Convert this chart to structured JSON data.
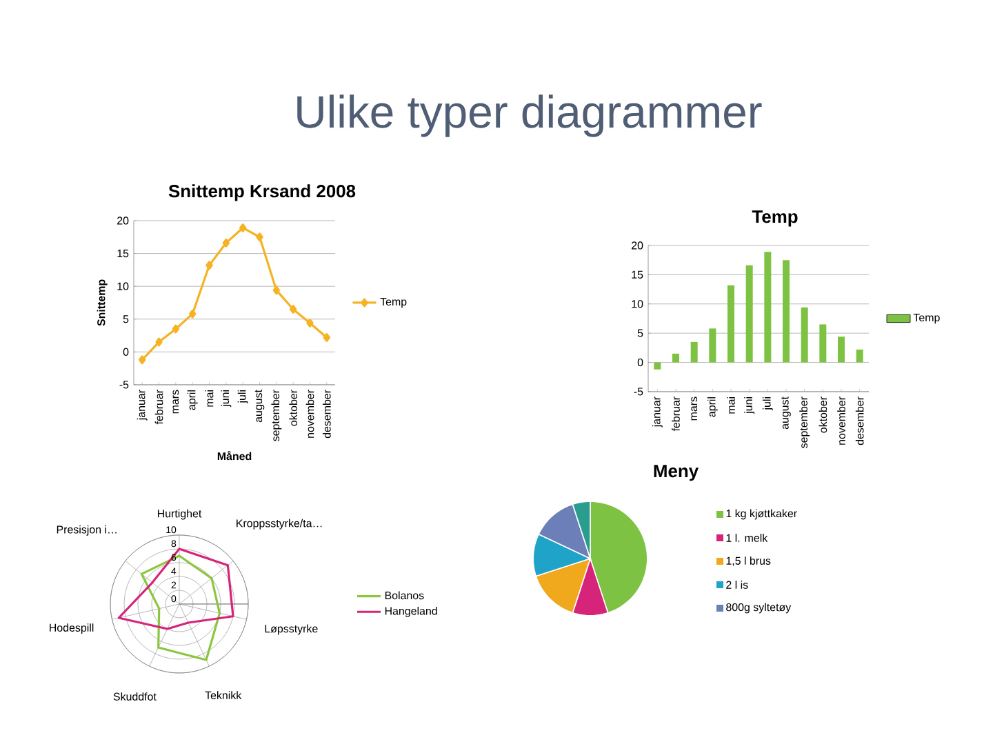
{
  "chart_data": [
    {
      "type": "other",
      "title": "Ulike typer diagrammer"
    },
    {
      "type": "line",
      "title": "Snittemp Krsand 2008",
      "xlabel": "Måned",
      "ylabel": "Snittemp",
      "categories": [
        "januar",
        "februar",
        "mars",
        "april",
        "mai",
        "juni",
        "juli",
        "august",
        "september",
        "oktober",
        "november",
        "desember"
      ],
      "series": [
        {
          "name": "Temp",
          "color": "#f5b323",
          "values": [
            -1.2,
            1.5,
            3.5,
            5.8,
            13.2,
            16.6,
            18.9,
            17.5,
            9.4,
            6.5,
            4.4,
            2.2
          ]
        }
      ],
      "ylim": [
        -5,
        20
      ],
      "yticks": [
        -5,
        0,
        5,
        10,
        15,
        20
      ],
      "grid": "y",
      "legend": "right",
      "marker": "diamond",
      "line_style": "solid"
    },
    {
      "type": "bar",
      "title": "Temp",
      "categories": [
        "januar",
        "februar",
        "mars",
        "april",
        "mai",
        "juni",
        "juli",
        "august",
        "september",
        "oktober",
        "november",
        "desember"
      ],
      "series": [
        {
          "name": "Temp",
          "color": "#7dc242",
          "values": [
            -1.2,
            1.5,
            3.5,
            5.8,
            13.2,
            16.6,
            18.9,
            17.5,
            9.4,
            6.5,
            4.4,
            2.2
          ]
        }
      ],
      "ylim": [
        -5,
        20
      ],
      "yticks": [
        -5,
        0,
        5,
        10,
        15,
        20
      ],
      "grid": "y",
      "legend": "right"
    },
    {
      "type": "radar",
      "categories": [
        "Hurtighet",
        "Kroppsstyrke/ta…",
        "Løpsstyrke",
        "Teknikk",
        "Skuddfot",
        "Hodespill",
        "Presisjon i…"
      ],
      "series": [
        {
          "name": "Bolanos",
          "color": "#8cc63f",
          "values": [
            7,
            6,
            6,
            9,
            7,
            3,
            7
          ]
        },
        {
          "name": "Hangeland",
          "color": "#d6247a",
          "values": [
            8,
            9,
            8,
            3,
            4,
            9,
            5
          ]
        }
      ],
      "ylim": [
        0,
        10
      ],
      "yticks": [
        0,
        2,
        4,
        6,
        8,
        10
      ],
      "grid": true,
      "legend": "right"
    },
    {
      "type": "pie",
      "title": "Meny",
      "categories": [
        "1 kg kjøttkaker",
        "1 l. melk",
        "1,5 l brus",
        "2 l is",
        "800g syltetøy",
        null
      ],
      "values": [
        45,
        10,
        15,
        12,
        13,
        5
      ],
      "colors": [
        "#7dc242",
        "#d6247a",
        "#f0a81c",
        "#1fa3c8",
        "#6d7fb8",
        "#2a9d8f"
      ],
      "legend": "right"
    }
  ]
}
